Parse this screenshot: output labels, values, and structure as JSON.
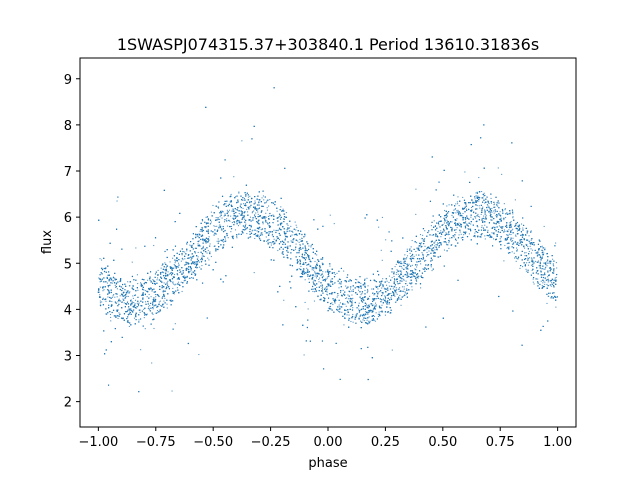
{
  "chart_data": {
    "type": "scatter",
    "title": "1SWASPJ074315.37+303840.1 Period 13610.31836s",
    "xlabel": "phase",
    "ylabel": "flux",
    "xlim": [
      -1.08,
      1.08
    ],
    "ylim": [
      1.45,
      9.45
    ],
    "xticks": [
      -1.0,
      -0.75,
      -0.5,
      -0.25,
      0.0,
      0.25,
      0.5,
      0.75,
      1.0
    ],
    "xtick_labels": [
      "−1.00",
      "−0.75",
      "−0.50",
      "−0.25",
      "0.00",
      "0.25",
      "0.50",
      "0.75",
      "1.00"
    ],
    "yticks": [
      2,
      3,
      4,
      5,
      6,
      7,
      8,
      9
    ],
    "ytick_labels": [
      "2",
      "3",
      "4",
      "5",
      "6",
      "7",
      "8",
      "9"
    ],
    "grid": false,
    "point_color": "#1f77b4",
    "series": [
      {
        "light_curve_model": {
          "phase_range": [
            -1.0,
            1.0
          ],
          "mean_flux": 5.1,
          "amplitude": 0.95,
          "phase_of_maximum": -0.35,
          "period_in_phase": 1.0,
          "band_half_width": 0.45
        },
        "points": [
          [
            -1.0,
            4.7
          ],
          [
            -0.95,
            4.5
          ],
          [
            -0.9,
            4.35
          ],
          [
            -0.85,
            4.3
          ],
          [
            -0.8,
            4.35
          ],
          [
            -0.75,
            4.5
          ],
          [
            -0.7,
            4.8
          ],
          [
            -0.65,
            5.1
          ],
          [
            -0.6,
            5.4
          ],
          [
            -0.55,
            5.65
          ],
          [
            -0.5,
            5.85
          ],
          [
            -0.45,
            5.95
          ],
          [
            -0.4,
            6.0
          ],
          [
            -0.35,
            6.0
          ],
          [
            -0.3,
            5.95
          ],
          [
            -0.25,
            5.85
          ],
          [
            -0.2,
            5.65
          ],
          [
            -0.15,
            5.4
          ],
          [
            -0.1,
            5.1
          ],
          [
            -0.05,
            4.8
          ],
          [
            0.0,
            4.6
          ],
          [
            0.05,
            4.45
          ],
          [
            0.1,
            4.35
          ],
          [
            0.15,
            4.3
          ],
          [
            0.2,
            4.35
          ],
          [
            0.25,
            4.5
          ],
          [
            0.3,
            4.8
          ],
          [
            0.35,
            5.1
          ],
          [
            0.4,
            5.4
          ],
          [
            0.45,
            5.65
          ],
          [
            0.5,
            5.85
          ],
          [
            0.55,
            5.95
          ],
          [
            0.6,
            6.0
          ],
          [
            0.65,
            6.0
          ],
          [
            0.7,
            5.95
          ],
          [
            0.75,
            5.85
          ],
          [
            0.8,
            5.65
          ],
          [
            0.85,
            5.4
          ],
          [
            0.9,
            5.2
          ],
          [
            0.95,
            5.0
          ],
          [
            1.0,
            4.8
          ]
        ]
      }
    ]
  }
}
